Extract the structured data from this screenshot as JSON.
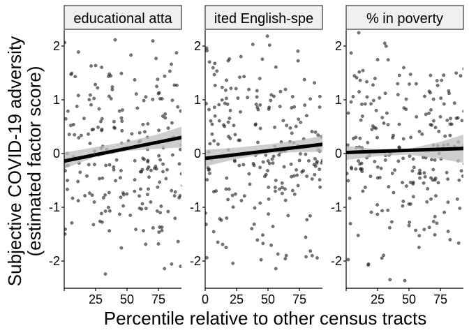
{
  "chart_data": {
    "type": "scatter",
    "xlabel": "Percentile relative to other census tracts",
    "ylabel_lines": [
      "Subjective COVID-19 adversity",
      "(estimated factor score)"
    ],
    "xlim": [
      0,
      100
    ],
    "ylim": [
      -2.5,
      2.3
    ],
    "xtick_values": [
      0,
      25,
      50,
      75
    ],
    "ytick_values": [
      -2,
      -1,
      0,
      1,
      2
    ],
    "grid": false,
    "point_color": "#222222",
    "line_color": "#000000",
    "band_color": "#bebebe",
    "strip_fill": "#f0f0f0",
    "panels": [
      {
        "strip_label": "educational atta",
        "xtick_labels": [
          "",
          "25",
          "50",
          "75"
        ],
        "fit": {
          "x": [
            0,
            100
          ],
          "y": [
            -0.14,
            0.33
          ]
        },
        "band_lower": [
          [
            0,
            -0.28
          ],
          [
            25,
            -0.06
          ],
          [
            50,
            0.05
          ],
          [
            75,
            0.09
          ],
          [
            100,
            0.12
          ]
        ],
        "band_upper": [
          [
            0,
            0.02
          ],
          [
            25,
            0.12
          ],
          [
            50,
            0.22
          ],
          [
            75,
            0.36
          ],
          [
            100,
            0.55
          ]
        ]
      },
      {
        "strip_label": "ited English-spe",
        "xtick_labels": [
          "0",
          "25",
          "50",
          "75"
        ],
        "fit": {
          "x": [
            0,
            100
          ],
          "y": [
            -0.09,
            0.19
          ]
        },
        "band_lower": [
          [
            0,
            -0.24
          ],
          [
            25,
            -0.1
          ],
          [
            50,
            0.0
          ],
          [
            75,
            0.03
          ],
          [
            100,
            0.03
          ]
        ],
        "band_upper": [
          [
            0,
            0.07
          ],
          [
            25,
            0.11
          ],
          [
            50,
            0.17
          ],
          [
            75,
            0.25
          ],
          [
            100,
            0.36
          ]
        ]
      },
      {
        "strip_label": "% in poverty",
        "xtick_labels": [
          "",
          "25",
          "50",
          "75"
        ],
        "fit": {
          "x": [
            0,
            100
          ],
          "y": [
            0.02,
            0.1
          ]
        },
        "band_lower": [
          [
            0,
            -0.12
          ],
          [
            25,
            -0.05
          ],
          [
            50,
            -0.02
          ],
          [
            75,
            -0.1
          ],
          [
            100,
            -0.2
          ]
        ],
        "band_upper": [
          [
            0,
            0.14
          ],
          [
            25,
            0.08
          ],
          [
            50,
            0.09
          ],
          [
            75,
            0.22
          ],
          [
            100,
            0.4
          ]
        ]
      }
    ]
  }
}
